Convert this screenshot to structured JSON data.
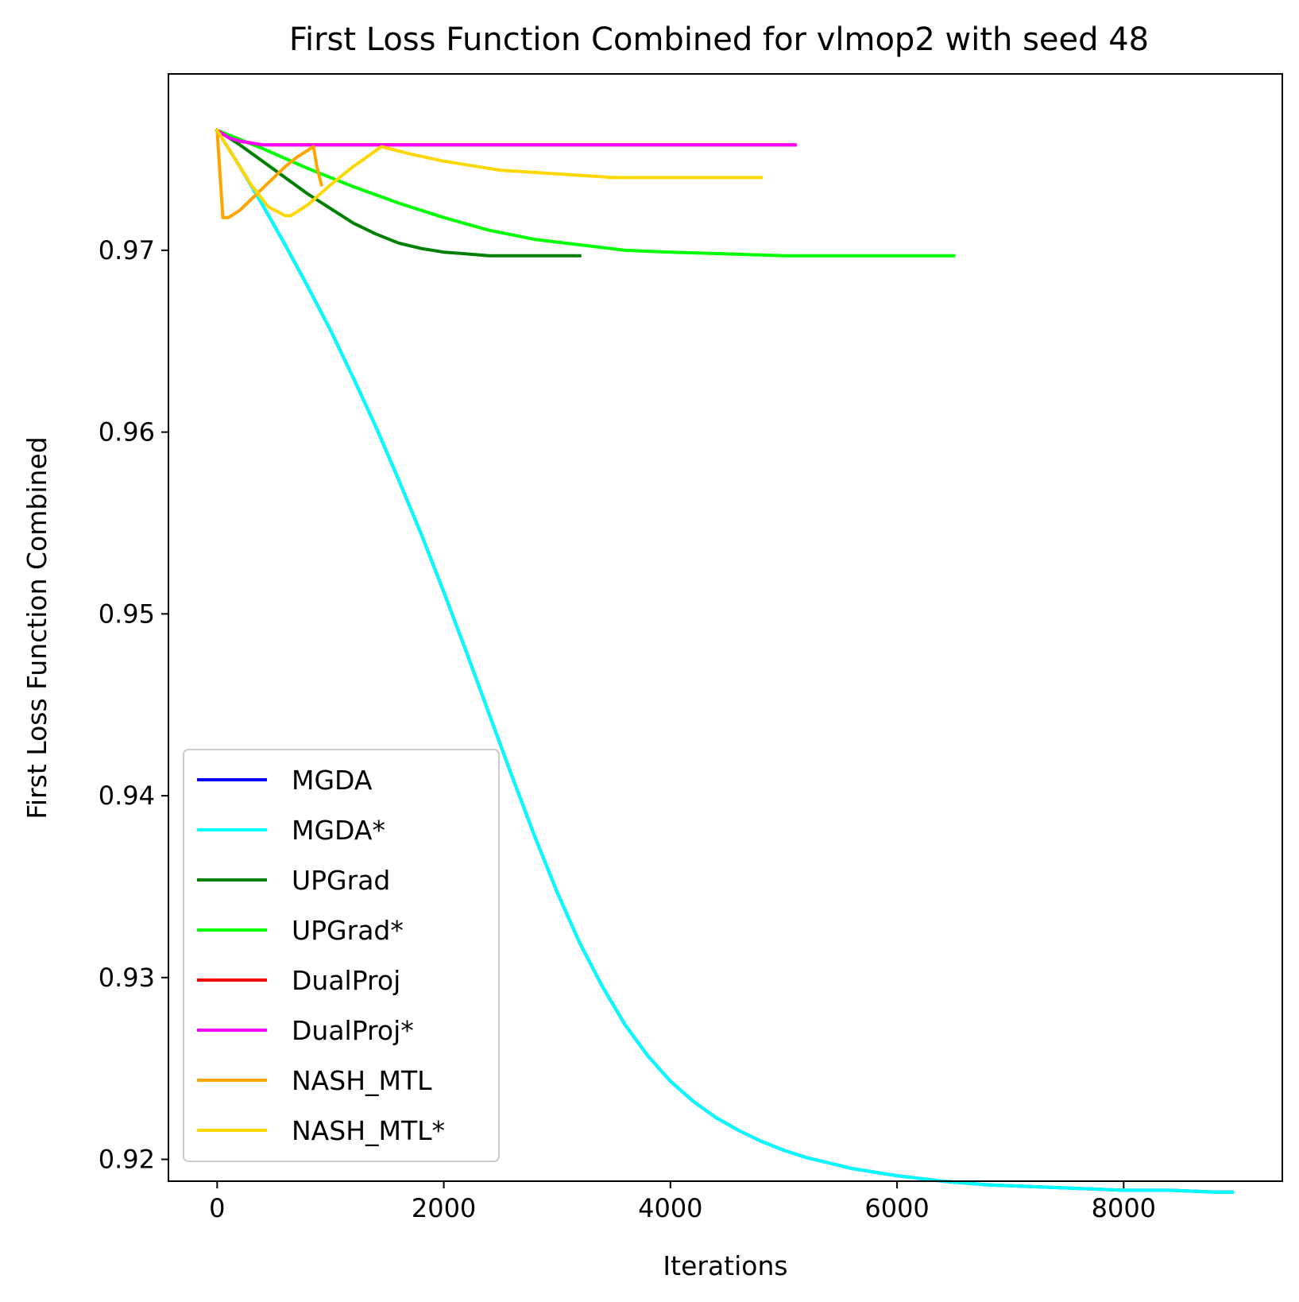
{
  "chart_data": {
    "type": "line",
    "title": "First Loss Function Combined for vlmop2 with seed 48",
    "xlabel": "Iterations",
    "ylabel": "First Loss Function Combined",
    "xlim": [
      -430,
      9400
    ],
    "ylim": [
      0.9188,
      0.9797
    ],
    "xticks": [
      0,
      2000,
      4000,
      6000,
      8000
    ],
    "xtick_labels": [
      "0",
      "2000",
      "4000",
      "6000",
      "8000"
    ],
    "yticks": [
      0.92,
      0.93,
      0.94,
      0.95,
      0.96,
      0.97
    ],
    "ytick_labels": [
      "0.92",
      "0.93",
      "0.94",
      "0.95",
      "0.96",
      "0.97"
    ],
    "grid": false,
    "legend_position": "lower-left",
    "series": [
      {
        "name": "MGDA",
        "color": "#0000ff",
        "x": [
          0,
          200,
          400,
          600,
          800,
          1000,
          1200,
          1400,
          1600,
          1800,
          2000,
          2200,
          2400,
          2600,
          2800,
          3000,
          3200,
          3400,
          3600,
          3800,
          4000,
          4200,
          4400,
          4600,
          4800,
          5000,
          5200,
          5400,
          5600,
          5800,
          6000,
          6400,
          6800,
          7200,
          7600,
          8000,
          8400,
          8800,
          8960
        ],
        "y": [
          0.9766,
          0.9746,
          0.9725,
          0.9703,
          0.968,
          0.9656,
          0.963,
          0.9603,
          0.9574,
          0.9544,
          0.9512,
          0.9479,
          0.9445,
          0.9411,
          0.9378,
          0.9347,
          0.9319,
          0.9295,
          0.9274,
          0.9257,
          0.9243,
          0.9232,
          0.9223,
          0.9216,
          0.921,
          0.9205,
          0.9201,
          0.9198,
          0.9195,
          0.9193,
          0.9191,
          0.9188,
          0.9186,
          0.9185,
          0.9184,
          0.9183,
          0.9183,
          0.9182,
          0.9182
        ]
      },
      {
        "name": "MGDA*",
        "color": "#00ffff",
        "x": [
          0,
          200,
          400,
          600,
          800,
          1000,
          1200,
          1400,
          1600,
          1800,
          2000,
          2200,
          2400,
          2600,
          2800,
          3000,
          3200,
          3400,
          3600,
          3800,
          4000,
          4200,
          4400,
          4600,
          4800,
          5000,
          5200,
          5400,
          5600,
          5800,
          6000,
          6400,
          6800,
          7200,
          7600,
          8000,
          8400,
          8800,
          8960
        ],
        "y": [
          0.9766,
          0.9746,
          0.9725,
          0.9703,
          0.968,
          0.9656,
          0.963,
          0.9603,
          0.9574,
          0.9544,
          0.9512,
          0.9479,
          0.9445,
          0.9411,
          0.9378,
          0.9347,
          0.9319,
          0.9295,
          0.9274,
          0.9257,
          0.9243,
          0.9232,
          0.9223,
          0.9216,
          0.921,
          0.9205,
          0.9201,
          0.9198,
          0.9195,
          0.9193,
          0.9191,
          0.9188,
          0.9186,
          0.9185,
          0.9184,
          0.9183,
          0.9183,
          0.9182,
          0.9182
        ]
      },
      {
        "name": "UPGrad",
        "color": "#008000",
        "x": [
          0,
          200,
          400,
          600,
          800,
          1000,
          1200,
          1400,
          1600,
          1800,
          2000,
          2200,
          2400,
          2600,
          2800,
          3000,
          3200
        ],
        "y": [
          0.9766,
          0.9758,
          0.9749,
          0.974,
          0.9731,
          0.9723,
          0.9715,
          0.9709,
          0.9704,
          0.9701,
          0.9699,
          0.9698,
          0.9697,
          0.9697,
          0.9697,
          0.9697,
          0.9697
        ]
      },
      {
        "name": "UPGrad*",
        "color": "#00ff00",
        "x": [
          0,
          400,
          800,
          1200,
          1600,
          2000,
          2400,
          2800,
          3200,
          3600,
          4000,
          4500,
          5000,
          5500,
          6000,
          6500
        ],
        "y": [
          0.9766,
          0.9756,
          0.9745,
          0.9735,
          0.9726,
          0.9718,
          0.9711,
          0.9706,
          0.9703,
          0.97,
          0.9699,
          0.9698,
          0.9697,
          0.9697,
          0.9697,
          0.9697
        ]
      },
      {
        "name": "DualProj",
        "color": "#ff0000",
        "x": [
          0,
          100,
          200,
          300,
          400,
          500,
          600,
          800,
          1000,
          1500,
          2000,
          3000,
          4000,
          5000,
          5100
        ],
        "y": [
          0.9766,
          0.9762,
          0.976,
          0.9759,
          0.9758,
          0.9758,
          0.9758,
          0.9758,
          0.9758,
          0.9758,
          0.9758,
          0.9758,
          0.9758,
          0.9758,
          0.9758
        ]
      },
      {
        "name": "DualProj*",
        "color": "#ff00ff",
        "x": [
          0,
          100,
          200,
          300,
          400,
          500,
          600,
          800,
          1000,
          1500,
          2000,
          3000,
          4000,
          5000,
          5100
        ],
        "y": [
          0.9766,
          0.9762,
          0.976,
          0.9759,
          0.9758,
          0.9758,
          0.9758,
          0.9758,
          0.9758,
          0.9758,
          0.9758,
          0.9758,
          0.9758,
          0.9758,
          0.9758
        ]
      },
      {
        "name": "NASH_MTL",
        "color": "#ffa500",
        "x": [
          0,
          50,
          100,
          200,
          300,
          400,
          500,
          600,
          700,
          800,
          850,
          880,
          920
        ],
        "y": [
          0.9766,
          0.9718,
          0.9718,
          0.9722,
          0.9728,
          0.9734,
          0.974,
          0.9746,
          0.9751,
          0.9755,
          0.9757,
          0.9746,
          0.9736
        ]
      },
      {
        "name": "NASH_MTL*",
        "color": "#ffd700",
        "x": [
          0,
          150,
          300,
          450,
          600,
          650,
          800,
          1000,
          1200,
          1450,
          1700,
          2000,
          2500,
          3000,
          3500,
          4000,
          4500,
          4800
        ],
        "y": [
          0.9766,
          0.9751,
          0.9736,
          0.9724,
          0.9719,
          0.9719,
          0.9725,
          0.9736,
          0.9746,
          0.9757,
          0.9753,
          0.9749,
          0.9744,
          0.9742,
          0.974,
          0.974,
          0.974,
          0.974
        ]
      }
    ]
  }
}
